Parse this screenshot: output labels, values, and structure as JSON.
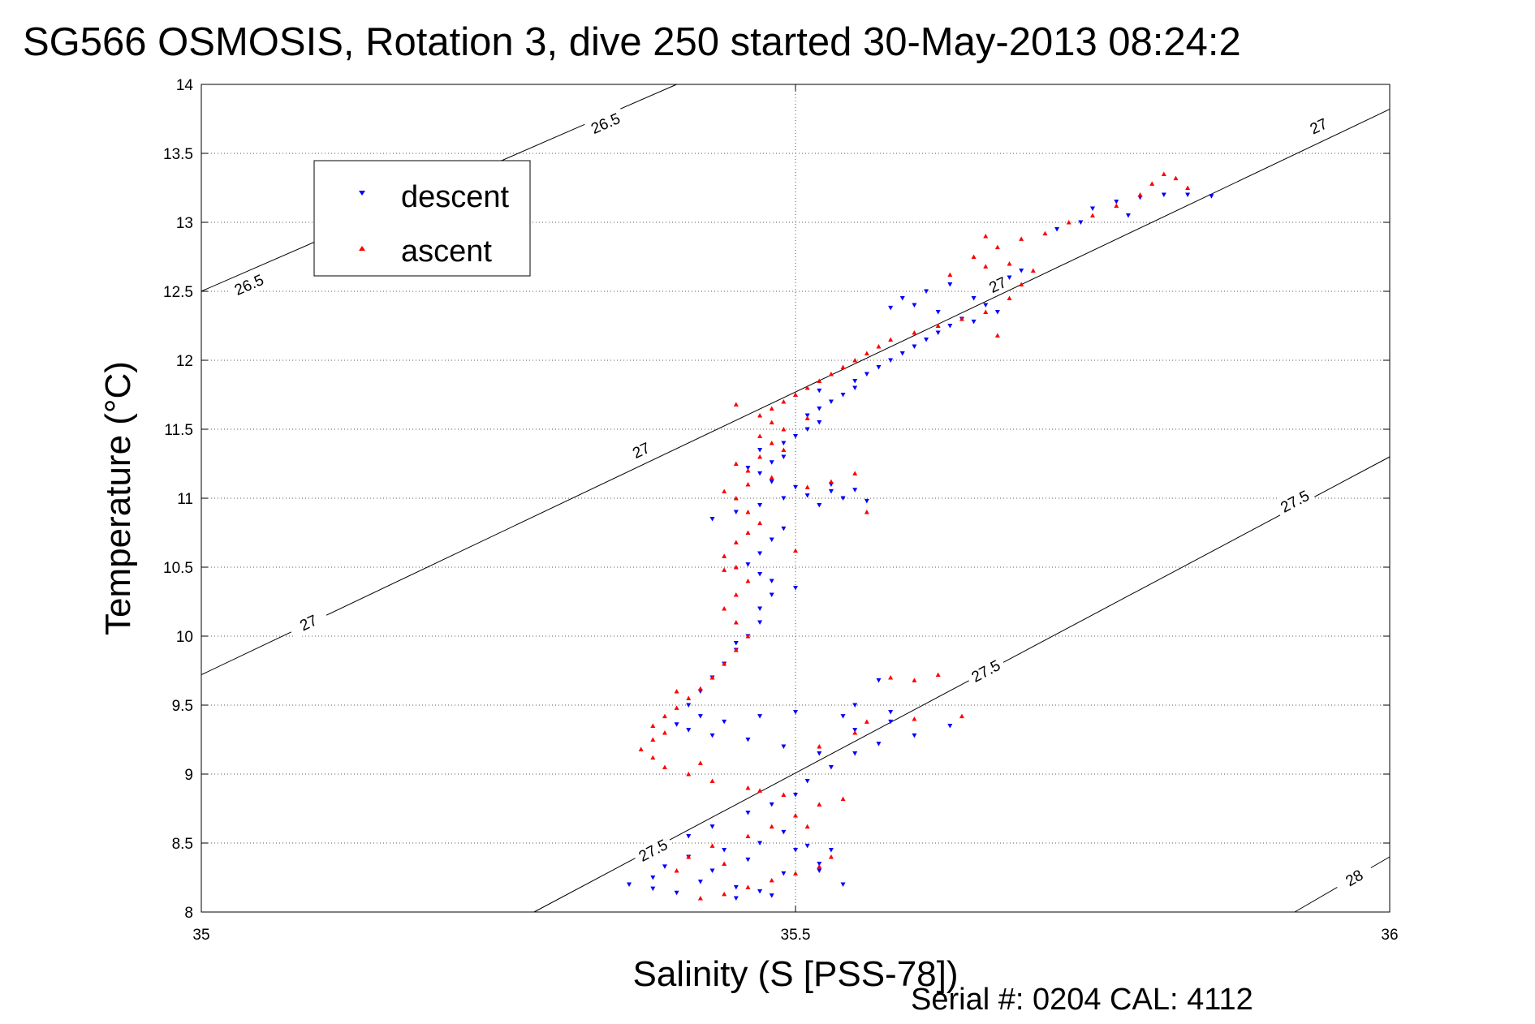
{
  "title": "SG566 OSMOSIS, Rotation 3, dive 250 started 30-May-2013 08:24:2",
  "serial_note": "Serial #: 0204  CAL: 4112",
  "colors": {
    "descent": "#0000ff",
    "ascent": "#ff0000",
    "contour": "#000000"
  },
  "chart_data": {
    "type": "scatter",
    "title": "SG566 OSMOSIS, Rotation 3, dive 250 started 30-May-2013 08:24:2",
    "xlabel": "Salinity (S [PSS-78])",
    "ylabel": "Temperature (°C)",
    "xlim": [
      35,
      36
    ],
    "ylim": [
      8,
      14
    ],
    "xticks": [
      "35",
      "35.5",
      "36"
    ],
    "yticks": [
      "8",
      "8.5",
      "9",
      "9.5",
      "10",
      "10.5",
      "11",
      "11.5",
      "12",
      "12.5",
      "13",
      "13.5",
      "14"
    ],
    "grid": true,
    "legend_position": "top-left",
    "series": [
      {
        "name": "descent",
        "marker": "triangle-down",
        "color": "#0000ff",
        "points": [
          [
            35.4,
            8.14
          ],
          [
            35.38,
            8.17
          ],
          [
            35.36,
            8.2
          ],
          [
            35.42,
            8.22
          ],
          [
            35.45,
            8.18
          ],
          [
            35.48,
            8.12
          ],
          [
            35.43,
            8.3
          ],
          [
            35.39,
            8.33
          ],
          [
            35.41,
            8.4
          ],
          [
            35.46,
            8.38
          ],
          [
            35.5,
            8.45
          ],
          [
            35.47,
            8.5
          ],
          [
            35.51,
            8.48
          ],
          [
            35.53,
            8.45
          ],
          [
            35.52,
            8.35
          ],
          [
            35.49,
            8.28
          ],
          [
            35.44,
            8.45
          ],
          [
            35.41,
            8.55
          ],
          [
            35.43,
            8.62
          ],
          [
            35.46,
            8.72
          ],
          [
            35.48,
            8.78
          ],
          [
            35.5,
            8.85
          ],
          [
            35.51,
            8.95
          ],
          [
            35.53,
            9.05
          ],
          [
            35.55,
            9.15
          ],
          [
            35.57,
            9.22
          ],
          [
            35.6,
            9.28
          ],
          [
            35.63,
            9.35
          ],
          [
            35.58,
            9.38
          ],
          [
            35.54,
            9.42
          ],
          [
            35.5,
            9.45
          ],
          [
            35.47,
            9.42
          ],
          [
            35.44,
            9.38
          ],
          [
            35.41,
            9.32
          ],
          [
            35.43,
            9.28
          ],
          [
            35.46,
            9.25
          ],
          [
            35.49,
            9.2
          ],
          [
            35.52,
            9.15
          ],
          [
            35.55,
            9.32
          ],
          [
            35.58,
            9.45
          ],
          [
            35.42,
            9.42
          ],
          [
            35.4,
            9.36
          ],
          [
            35.41,
            9.5
          ],
          [
            35.42,
            9.6
          ],
          [
            35.43,
            9.7
          ],
          [
            35.44,
            9.8
          ],
          [
            35.45,
            9.9
          ],
          [
            35.46,
            10.0
          ],
          [
            35.47,
            10.1
          ],
          [
            35.47,
            10.2
          ],
          [
            35.48,
            10.3
          ],
          [
            35.48,
            10.4
          ],
          [
            35.47,
            10.45
          ],
          [
            35.46,
            10.52
          ],
          [
            35.47,
            10.6
          ],
          [
            35.48,
            10.7
          ],
          [
            35.49,
            10.78
          ],
          [
            35.43,
            10.85
          ],
          [
            35.45,
            10.9
          ],
          [
            35.47,
            10.95
          ],
          [
            35.49,
            11.0
          ],
          [
            35.51,
            11.02
          ],
          [
            35.53,
            11.05
          ],
          [
            35.54,
            11.0
          ],
          [
            35.52,
            10.95
          ],
          [
            35.5,
            11.08
          ],
          [
            35.48,
            11.12
          ],
          [
            35.47,
            11.18
          ],
          [
            35.46,
            11.22
          ],
          [
            35.48,
            11.26
          ],
          [
            35.49,
            11.3
          ],
          [
            35.47,
            11.35
          ],
          [
            35.49,
            11.4
          ],
          [
            35.5,
            11.45
          ],
          [
            35.51,
            11.5
          ],
          [
            35.52,
            11.55
          ],
          [
            35.51,
            11.6
          ],
          [
            35.52,
            11.65
          ],
          [
            35.53,
            11.7
          ],
          [
            35.54,
            11.75
          ],
          [
            35.55,
            11.8
          ],
          [
            35.55,
            11.85
          ],
          [
            35.56,
            11.9
          ],
          [
            35.57,
            11.95
          ],
          [
            35.58,
            12.0
          ],
          [
            35.59,
            12.05
          ],
          [
            35.6,
            12.1
          ],
          [
            35.61,
            12.15
          ],
          [
            35.62,
            12.2
          ],
          [
            35.63,
            12.25
          ],
          [
            35.64,
            12.3
          ],
          [
            35.62,
            12.35
          ],
          [
            35.6,
            12.4
          ],
          [
            35.58,
            12.38
          ],
          [
            35.59,
            12.45
          ],
          [
            35.61,
            12.5
          ],
          [
            35.63,
            12.55
          ],
          [
            35.65,
            12.45
          ],
          [
            35.66,
            12.4
          ],
          [
            35.67,
            12.35
          ],
          [
            35.68,
            12.6
          ],
          [
            35.72,
            12.95
          ],
          [
            35.74,
            13.0
          ],
          [
            35.75,
            13.1
          ],
          [
            35.77,
            13.15
          ],
          [
            35.79,
            13.18
          ],
          [
            35.81,
            13.2
          ],
          [
            35.83,
            13.2
          ],
          [
            35.85,
            13.19
          ],
          [
            35.78,
            13.05
          ],
          [
            35.69,
            12.65
          ],
          [
            35.65,
            12.28
          ],
          [
            35.52,
            11.78
          ],
          [
            35.53,
            11.1
          ],
          [
            35.55,
            11.06
          ],
          [
            35.56,
            10.98
          ],
          [
            35.57,
            9.68
          ],
          [
            35.55,
            9.5
          ],
          [
            35.49,
            8.58
          ],
          [
            35.52,
            8.3
          ],
          [
            35.54,
            8.2
          ],
          [
            35.45,
            8.1
          ],
          [
            35.47,
            8.15
          ],
          [
            35.38,
            8.25
          ],
          [
            35.5,
            10.35
          ],
          [
            35.45,
            9.95
          ]
        ]
      },
      {
        "name": "ascent",
        "marker": "triangle-up",
        "color": "#ff0000",
        "points": [
          [
            35.42,
            8.1
          ],
          [
            35.44,
            8.13
          ],
          [
            35.46,
            8.18
          ],
          [
            35.48,
            8.23
          ],
          [
            35.5,
            8.28
          ],
          [
            35.52,
            8.33
          ],
          [
            35.44,
            8.35
          ],
          [
            35.41,
            8.4
          ],
          [
            35.43,
            8.48
          ],
          [
            35.46,
            8.55
          ],
          [
            35.48,
            8.62
          ],
          [
            35.5,
            8.7
          ],
          [
            35.52,
            8.78
          ],
          [
            35.54,
            8.82
          ],
          [
            35.49,
            8.85
          ],
          [
            35.46,
            8.9
          ],
          [
            35.43,
            8.95
          ],
          [
            35.41,
            9.0
          ],
          [
            35.39,
            9.05
          ],
          [
            35.38,
            9.12
          ],
          [
            35.37,
            9.18
          ],
          [
            35.38,
            9.25
          ],
          [
            35.39,
            9.3
          ],
          [
            35.38,
            9.35
          ],
          [
            35.39,
            9.42
          ],
          [
            35.4,
            9.48
          ],
          [
            35.41,
            9.55
          ],
          [
            35.42,
            9.62
          ],
          [
            35.43,
            9.7
          ],
          [
            35.44,
            9.8
          ],
          [
            35.45,
            9.9
          ],
          [
            35.46,
            10.0
          ],
          [
            35.45,
            10.1
          ],
          [
            35.44,
            10.2
          ],
          [
            35.45,
            10.3
          ],
          [
            35.46,
            10.4
          ],
          [
            35.45,
            10.5
          ],
          [
            35.44,
            10.58
          ],
          [
            35.45,
            10.68
          ],
          [
            35.46,
            10.75
          ],
          [
            35.47,
            10.82
          ],
          [
            35.46,
            10.9
          ],
          [
            35.45,
            11.0
          ],
          [
            35.44,
            11.05
          ],
          [
            35.46,
            11.1
          ],
          [
            35.48,
            11.15
          ],
          [
            35.46,
            11.2
          ],
          [
            35.45,
            11.25
          ],
          [
            35.47,
            11.3
          ],
          [
            35.49,
            11.35
          ],
          [
            35.48,
            11.4
          ],
          [
            35.47,
            11.45
          ],
          [
            35.49,
            11.5
          ],
          [
            35.48,
            11.55
          ],
          [
            35.47,
            11.6
          ],
          [
            35.48,
            11.65
          ],
          [
            35.49,
            11.7
          ],
          [
            35.5,
            11.75
          ],
          [
            35.51,
            11.8
          ],
          [
            35.52,
            11.85
          ],
          [
            35.53,
            11.9
          ],
          [
            35.54,
            11.95
          ],
          [
            35.55,
            12.0
          ],
          [
            35.56,
            12.05
          ],
          [
            35.57,
            12.1
          ],
          [
            35.58,
            12.15
          ],
          [
            35.6,
            12.2
          ],
          [
            35.62,
            12.25
          ],
          [
            35.64,
            12.3
          ],
          [
            35.66,
            12.35
          ],
          [
            35.68,
            12.45
          ],
          [
            35.69,
            12.55
          ],
          [
            35.7,
            12.65
          ],
          [
            35.68,
            12.7
          ],
          [
            35.66,
            12.68
          ],
          [
            35.65,
            12.75
          ],
          [
            35.67,
            12.82
          ],
          [
            35.69,
            12.88
          ],
          [
            35.71,
            12.92
          ],
          [
            35.73,
            13.0
          ],
          [
            35.75,
            13.05
          ],
          [
            35.77,
            13.12
          ],
          [
            35.79,
            13.2
          ],
          [
            35.8,
            13.28
          ],
          [
            35.81,
            13.35
          ],
          [
            35.82,
            13.32
          ],
          [
            35.83,
            13.25
          ],
          [
            35.56,
            9.38
          ],
          [
            35.6,
            9.4
          ],
          [
            35.64,
            9.42
          ],
          [
            35.58,
            9.7
          ],
          [
            35.6,
            9.68
          ],
          [
            35.62,
            9.72
          ],
          [
            35.53,
            11.12
          ],
          [
            35.55,
            11.18
          ],
          [
            35.51,
            11.08
          ],
          [
            35.52,
            9.2
          ],
          [
            35.55,
            9.3
          ],
          [
            35.47,
            8.88
          ],
          [
            35.51,
            8.62
          ],
          [
            35.53,
            8.4
          ],
          [
            35.4,
            8.3
          ],
          [
            35.44,
            10.48
          ],
          [
            35.45,
            11.68
          ],
          [
            35.51,
            11.58
          ],
          [
            35.67,
            12.18
          ],
          [
            35.63,
            12.62
          ],
          [
            35.66,
            12.9
          ],
          [
            35.56,
            10.9
          ],
          [
            35.5,
            10.62
          ],
          [
            35.4,
            9.6
          ],
          [
            35.42,
            9.08
          ]
        ]
      }
    ],
    "isopycnals": [
      {
        "label": "26.5",
        "points": [
          [
            35.0,
            12.5
          ],
          [
            35.4,
            14.0
          ]
        ],
        "label_positions": [
          [
            35.04,
            12.55
          ],
          [
            35.34,
            13.72
          ]
        ]
      },
      {
        "label": "27",
        "points": [
          [
            35.0,
            9.72
          ],
          [
            36.0,
            13.82
          ]
        ],
        "label_positions": [
          [
            35.09,
            10.1
          ],
          [
            35.37,
            11.35
          ],
          [
            35.67,
            12.55
          ],
          [
            35.94,
            13.7
          ]
        ]
      },
      {
        "label": "27.5",
        "points": [
          [
            35.28,
            8.0
          ],
          [
            36.0,
            11.3
          ]
        ],
        "label_positions": [
          [
            35.38,
            8.45
          ],
          [
            35.66,
            9.75
          ],
          [
            35.92,
            10.98
          ]
        ]
      },
      {
        "label": "28",
        "points": [
          [
            35.92,
            8.0
          ],
          [
            36.0,
            8.4
          ]
        ],
        "label_positions": [
          [
            35.97,
            8.25
          ]
        ]
      }
    ]
  }
}
